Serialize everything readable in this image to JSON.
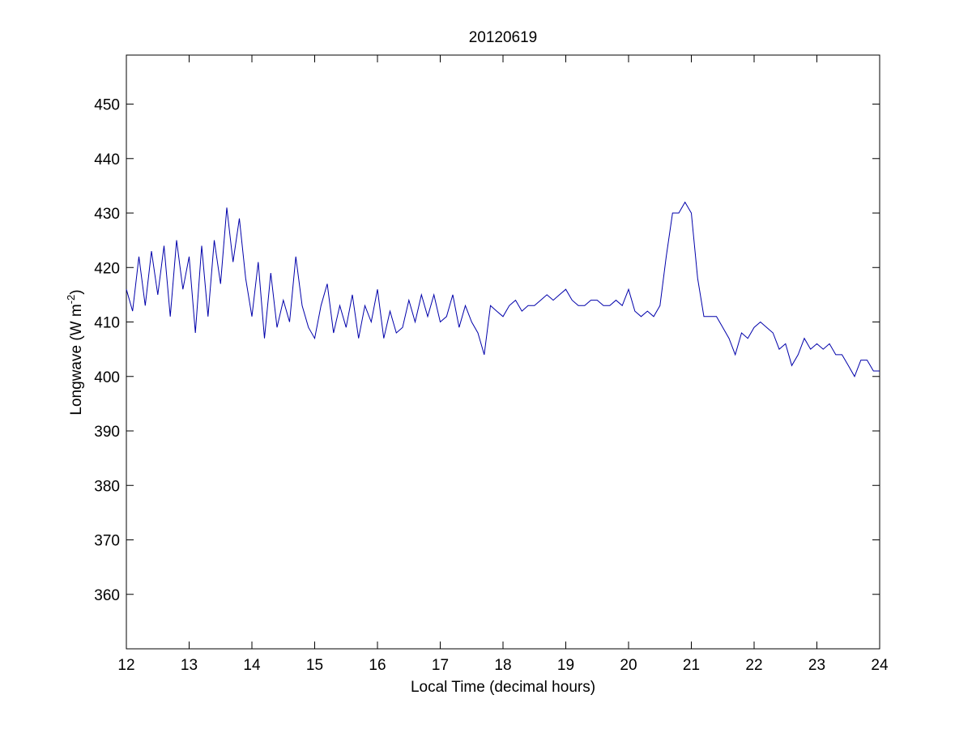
{
  "colors": {
    "background": "#ffffff",
    "axes": "#000000",
    "series": "#0000aa"
  },
  "chart_data": {
    "type": "line",
    "title": "20120619",
    "xlabel": "Local Time (decimal hours)",
    "ylabel_main": "Longwave (W m",
    "ylabel_sup": "-2",
    "ylabel_close": ")",
    "xlim": [
      12,
      24
    ],
    "ylim": [
      350,
      459
    ],
    "xticks": [
      12,
      13,
      14,
      15,
      16,
      17,
      18,
      19,
      20,
      21,
      22,
      23,
      24
    ],
    "yticks": [
      360,
      370,
      380,
      390,
      400,
      410,
      420,
      430,
      440,
      450
    ],
    "grid": false,
    "series": [
      {
        "color": "#0000aa",
        "x": [
          12.0,
          12.1,
          12.2,
          12.3,
          12.4,
          12.5,
          12.6,
          12.7,
          12.8,
          12.9,
          13.0,
          13.1,
          13.2,
          13.3,
          13.4,
          13.5,
          13.6,
          13.7,
          13.8,
          13.9,
          14.0,
          14.1,
          14.2,
          14.3,
          14.4,
          14.5,
          14.6,
          14.7,
          14.8,
          14.9,
          15.0,
          15.1,
          15.2,
          15.3,
          15.4,
          15.5,
          15.6,
          15.7,
          15.8,
          15.9,
          16.0,
          16.1,
          16.2,
          16.3,
          16.4,
          16.5,
          16.6,
          16.7,
          16.8,
          16.9,
          17.0,
          17.1,
          17.2,
          17.3,
          17.4,
          17.5,
          17.6,
          17.7,
          17.8,
          17.9,
          18.0,
          18.1,
          18.2,
          18.3,
          18.4,
          18.5,
          18.6,
          18.7,
          18.8,
          18.9,
          19.0,
          19.1,
          19.2,
          19.3,
          19.4,
          19.5,
          19.6,
          19.7,
          19.8,
          19.9,
          20.0,
          20.1,
          20.2,
          20.3,
          20.4,
          20.5,
          20.6,
          20.7,
          20.8,
          20.9,
          21.0,
          21.1,
          21.2,
          21.3,
          21.4,
          21.5,
          21.6,
          21.7,
          21.8,
          21.9,
          22.0,
          22.1,
          22.2,
          22.3,
          22.4,
          22.5,
          22.6,
          22.7,
          22.8,
          22.9,
          23.0,
          23.1,
          23.2,
          23.3,
          23.4,
          23.5,
          23.6,
          23.7,
          23.8,
          23.9,
          24.0
        ],
        "y": [
          416,
          412,
          422,
          413,
          423,
          415,
          424,
          411,
          425,
          416,
          422,
          408,
          424,
          411,
          425,
          417,
          431,
          421,
          429,
          418,
          411,
          421,
          407,
          419,
          409,
          414,
          410,
          422,
          413,
          409,
          407,
          413,
          417,
          408,
          413,
          409,
          415,
          407,
          413,
          410,
          416,
          407,
          412,
          408,
          409,
          414,
          410,
          415,
          411,
          415,
          410,
          411,
          415,
          409,
          413,
          410,
          408,
          404,
          413,
          412,
          411,
          413,
          414,
          412,
          413,
          413,
          414,
          415,
          414,
          415,
          416,
          414,
          413,
          413,
          414,
          414,
          413,
          413,
          414,
          413,
          416,
          412,
          411,
          412,
          411,
          413,
          422,
          430,
          430,
          432,
          430,
          418,
          411,
          411,
          411,
          409,
          407,
          404,
          408,
          407,
          409,
          410,
          409,
          408,
          405,
          406,
          402,
          404,
          407,
          405,
          406,
          405,
          406,
          404,
          404,
          402,
          400,
          403,
          403,
          401,
          401
        ]
      }
    ]
  }
}
